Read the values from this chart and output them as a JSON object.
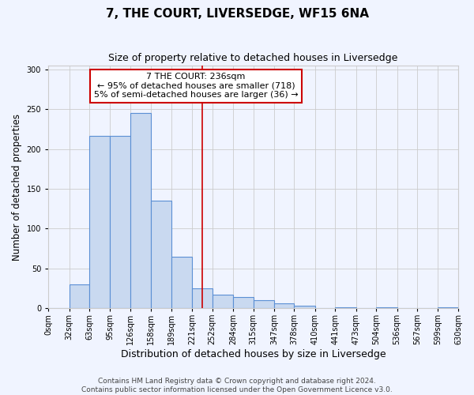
{
  "title": "7, THE COURT, LIVERSEDGE, WF15 6NA",
  "subtitle": "Size of property relative to detached houses in Liversedge",
  "xlabel": "Distribution of detached houses by size in Liversedge",
  "ylabel": "Number of detached properties",
  "bin_edges": [
    0,
    32,
    63,
    95,
    126,
    158,
    189,
    221,
    252,
    284,
    315,
    347,
    378,
    410,
    441,
    473,
    504,
    536,
    567,
    599,
    630
  ],
  "bin_counts": [
    0,
    30,
    217,
    217,
    245,
    135,
    65,
    25,
    17,
    14,
    10,
    6,
    3,
    0,
    1,
    0,
    1,
    0,
    0,
    1
  ],
  "bar_facecolor": "#c9d9f0",
  "bar_edgecolor": "#5b8fd4",
  "bar_linewidth": 0.8,
  "vline_x": 236,
  "vline_color": "#cc0000",
  "grid_color": "#cccccc",
  "background_color": "#f0f4ff",
  "annotation_box_text": "7 THE COURT: 236sqm\n← 95% of detached houses are smaller (718)\n5% of semi-detached houses are larger (36) →",
  "annotation_box_edgecolor": "#cc0000",
  "ylim": [
    0,
    305
  ],
  "yticks": [
    0,
    50,
    100,
    150,
    200,
    250,
    300
  ],
  "tick_labels": [
    "0sqm",
    "32sqm",
    "63sqm",
    "95sqm",
    "126sqm",
    "158sqm",
    "189sqm",
    "221sqm",
    "252sqm",
    "284sqm",
    "315sqm",
    "347sqm",
    "378sqm",
    "410sqm",
    "441sqm",
    "473sqm",
    "504sqm",
    "536sqm",
    "567sqm",
    "599sqm",
    "630sqm"
  ],
  "footnote": "Contains HM Land Registry data © Crown copyright and database right 2024.\nContains public sector information licensed under the Open Government Licence v3.0.",
  "title_fontsize": 11,
  "subtitle_fontsize": 9,
  "xlabel_fontsize": 9,
  "ylabel_fontsize": 8.5,
  "tick_fontsize": 7,
  "annotation_fontsize": 8,
  "footnote_fontsize": 6.5
}
